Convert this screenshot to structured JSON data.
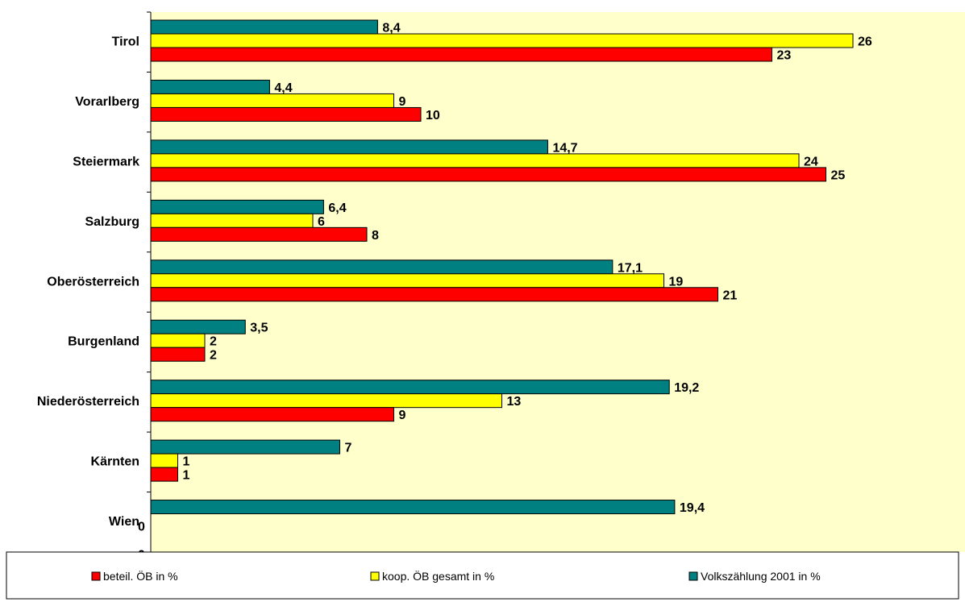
{
  "chart_data": {
    "type": "bar",
    "orientation": "horizontal",
    "categories": [
      "Tirol",
      "Vorarlberg",
      "Steiermark",
      "Salzburg",
      "Oberösterreich",
      "Burgenland",
      "Niederösterreich",
      "Kärnten",
      "Wien"
    ],
    "series": [
      {
        "name": "beteil. ÖB in %",
        "color": "#ff0000",
        "values": [
          23,
          10,
          25,
          8,
          21,
          2,
          9,
          1,
          0
        ],
        "labels": [
          "23",
          "10",
          "25",
          "8",
          "21",
          "2",
          "9",
          "1",
          "0"
        ]
      },
      {
        "name": "koop. ÖB gesamt in %",
        "color": "#ffff00",
        "values": [
          26,
          9,
          24,
          6,
          19,
          2,
          13,
          1,
          0
        ],
        "labels": [
          "26",
          "9",
          "24",
          "6",
          "19",
          "2",
          "13",
          "1",
          "0"
        ]
      },
      {
        "name": "Volkszählung 2001 in %",
        "color": "#008080",
        "values": [
          8.4,
          4.4,
          14.7,
          6.4,
          17.1,
          3.5,
          19.2,
          7,
          19.4
        ],
        "labels": [
          "8,4",
          "4,4",
          "14,7",
          "6,4",
          "17,1",
          "3,5",
          "19,2",
          "7",
          "19,4"
        ]
      }
    ],
    "xlim": [
      0,
      30
    ],
    "grid": false,
    "legend_position": "bottom",
    "plot_background": "#ffffcc"
  }
}
